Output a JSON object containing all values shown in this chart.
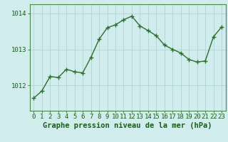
{
  "x": [
    0,
    1,
    2,
    3,
    4,
    5,
    6,
    7,
    8,
    9,
    10,
    11,
    12,
    13,
    14,
    15,
    16,
    17,
    18,
    19,
    20,
    21,
    22,
    23
  ],
  "y": [
    1011.65,
    1011.85,
    1012.25,
    1012.22,
    1012.45,
    1012.38,
    1012.35,
    1012.78,
    1013.28,
    1013.6,
    1013.68,
    1013.82,
    1013.92,
    1013.65,
    1013.52,
    1013.38,
    1013.12,
    1013.0,
    1012.9,
    1012.72,
    1012.65,
    1012.68,
    1013.35,
    1013.62
  ],
  "line_color": "#2d6e2d",
  "marker": "+",
  "bg_color": "#d0ecec",
  "grid_color": "#b0d4d4",
  "xlabel": "Graphe pression niveau de la mer (hPa)",
  "xlabel_color": "#1a5c1a",
  "tick_label_color": "#1a5c1a",
  "yticks": [
    1012,
    1013,
    1014
  ],
  "ylim": [
    1011.3,
    1014.25
  ],
  "xlim": [
    -0.5,
    23.5
  ],
  "xticks": [
    0,
    1,
    2,
    3,
    4,
    5,
    6,
    7,
    8,
    9,
    10,
    11,
    12,
    13,
    14,
    15,
    16,
    17,
    18,
    19,
    20,
    21,
    22,
    23
  ],
  "axis_color": "#4a8a4a",
  "fontsize_xlabel": 7.5,
  "fontsize_ticks": 6.5
}
